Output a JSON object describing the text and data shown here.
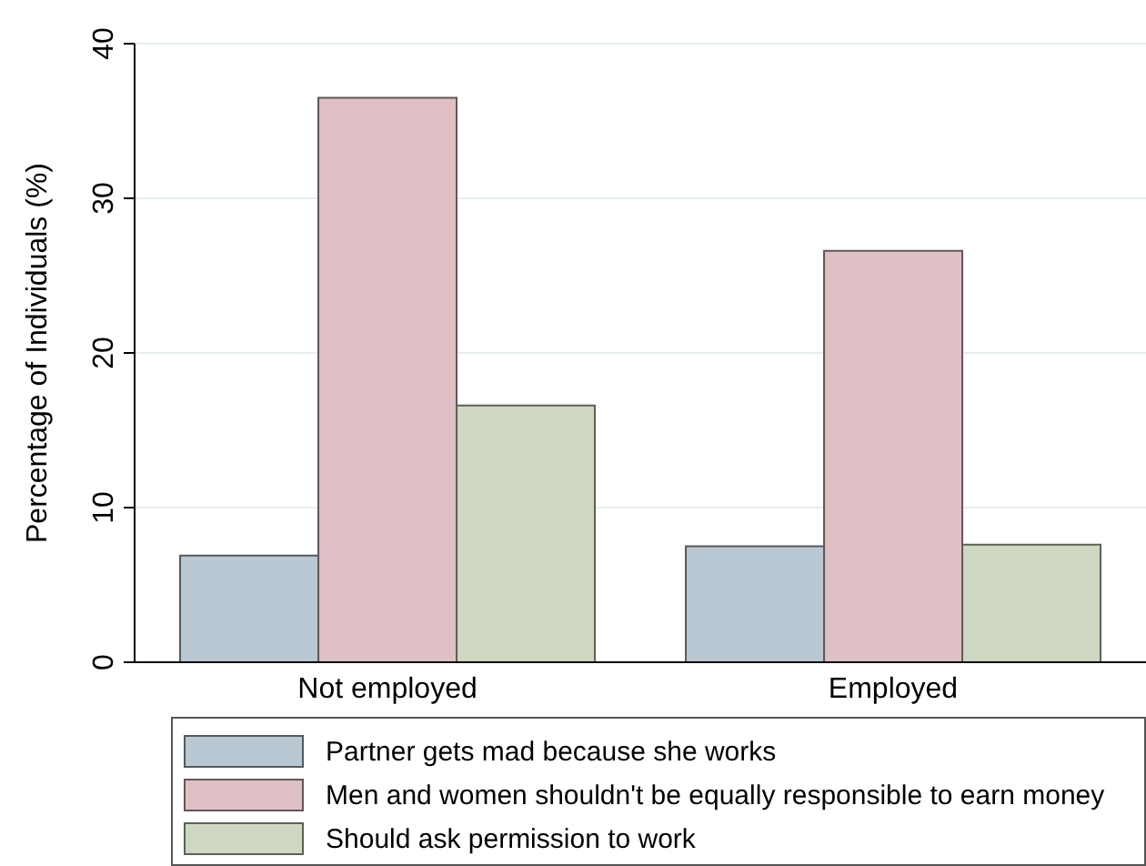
{
  "chart_data": {
    "type": "bar",
    "ylabel": "Percentage of Individuals (%)",
    "categories": [
      "Not employed",
      "Employed"
    ],
    "series": [
      {
        "name": "Partner gets mad because she works",
        "color": "#bac8d3",
        "values": [
          6.9,
          7.5
        ]
      },
      {
        "name": "Men and women shouldn't be equally responsible to earn money",
        "color": "#dfc0c4",
        "values": [
          36.5,
          26.6
        ]
      },
      {
        "name": "Should ask permission to work",
        "color": "#cdd7c2",
        "values": [
          16.6,
          7.6
        ]
      }
    ],
    "ylim": [
      0,
      40
    ],
    "yticks": [
      0,
      10,
      20,
      30,
      40
    ],
    "grid": "y",
    "legend": "bottom"
  }
}
